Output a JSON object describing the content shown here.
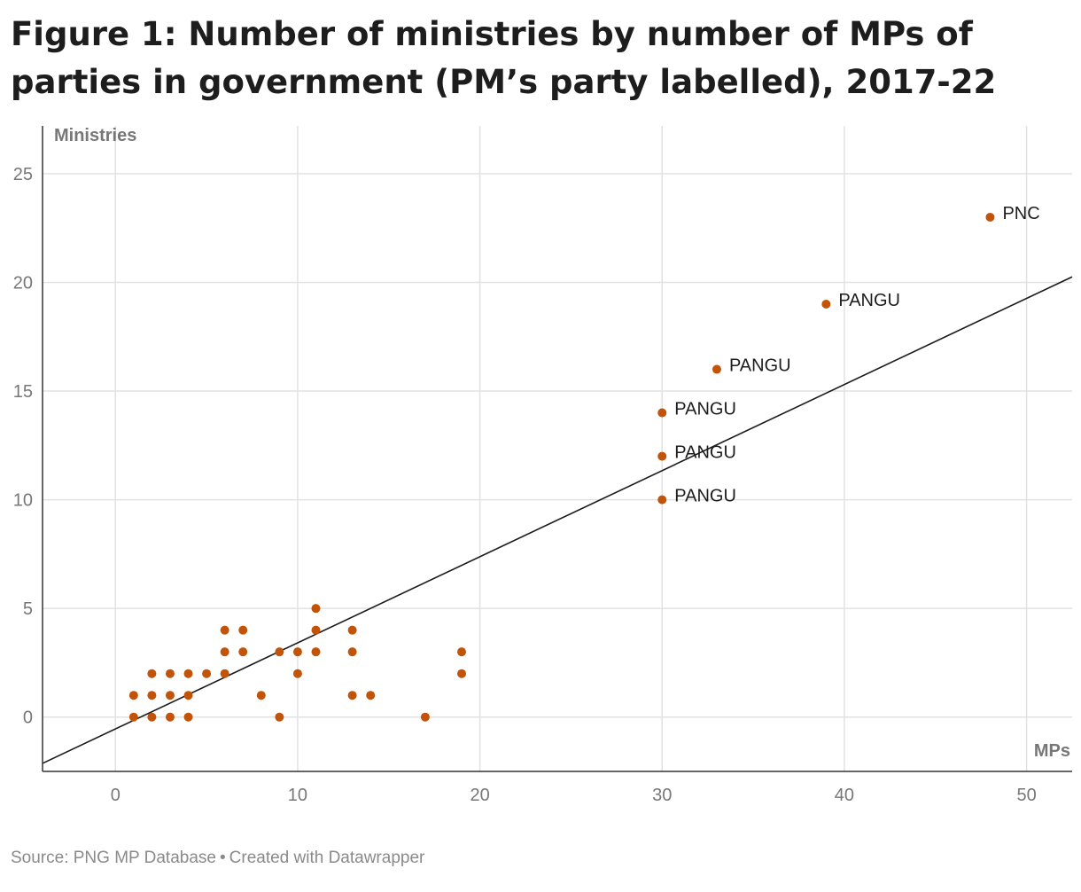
{
  "page": {
    "title": "Figure 1: Number of ministries by number of MPs of parties in government (PM’s party labelled), 2017-22",
    "source_text": "Source: PNG MP Database",
    "separator": "•",
    "credit_text": "Created with Datawrapper"
  },
  "colors": {
    "point": "#c2540a",
    "grid": "#e2e2e2",
    "axis": "#333333",
    "trendline": "#1a1a1a",
    "tick_label": "#777777"
  },
  "chart_data": {
    "type": "scatter",
    "title": "Figure 1: Number of ministries by number of MPs of parties in government (PM’s party labelled), 2017-22",
    "xlabel": "MPs",
    "ylabel": "Ministries",
    "xlim": [
      -4,
      52.5
    ],
    "ylim": [
      -2.5,
      27.2
    ],
    "xticks": [
      0,
      10,
      20,
      30,
      40,
      50
    ],
    "yticks": [
      0,
      5,
      10,
      15,
      20,
      25
    ],
    "grid": true,
    "points": [
      {
        "x": 1,
        "y": 1
      },
      {
        "x": 1,
        "y": 0
      },
      {
        "x": 2,
        "y": 2
      },
      {
        "x": 2,
        "y": 1
      },
      {
        "x": 2,
        "y": 0
      },
      {
        "x": 3,
        "y": 2
      },
      {
        "x": 3,
        "y": 1
      },
      {
        "x": 3,
        "y": 0
      },
      {
        "x": 4,
        "y": 2
      },
      {
        "x": 4,
        "y": 1
      },
      {
        "x": 4,
        "y": 0
      },
      {
        "x": 5,
        "y": 2
      },
      {
        "x": 6,
        "y": 4
      },
      {
        "x": 6,
        "y": 3
      },
      {
        "x": 6,
        "y": 2
      },
      {
        "x": 7,
        "y": 4
      },
      {
        "x": 7,
        "y": 3
      },
      {
        "x": 8,
        "y": 1
      },
      {
        "x": 9,
        "y": 3
      },
      {
        "x": 9,
        "y": 0
      },
      {
        "x": 10,
        "y": 3
      },
      {
        "x": 10,
        "y": 2
      },
      {
        "x": 11,
        "y": 5
      },
      {
        "x": 11,
        "y": 4
      },
      {
        "x": 11,
        "y": 3
      },
      {
        "x": 13,
        "y": 4
      },
      {
        "x": 13,
        "y": 3
      },
      {
        "x": 13,
        "y": 1
      },
      {
        "x": 14,
        "y": 1
      },
      {
        "x": 17,
        "y": 0
      },
      {
        "x": 19,
        "y": 3
      },
      {
        "x": 19,
        "y": 2
      },
      {
        "x": 30,
        "y": 14,
        "label": "PANGU"
      },
      {
        "x": 30,
        "y": 12,
        "label": "PANGU"
      },
      {
        "x": 30,
        "y": 10,
        "label": "PANGU"
      },
      {
        "x": 33,
        "y": 16,
        "label": "PANGU"
      },
      {
        "x": 39,
        "y": 19,
        "label": "PANGU"
      },
      {
        "x": 48,
        "y": 23,
        "label": "PNC"
      }
    ],
    "trendline": {
      "slope": 0.3962,
      "intercept": -0.546
    }
  }
}
